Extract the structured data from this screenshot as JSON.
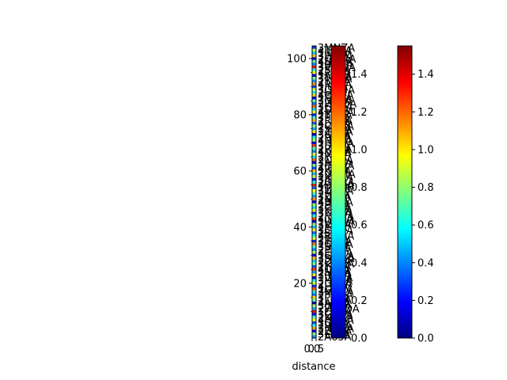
{
  "chart_data": {
    "type": "heatmap",
    "title": "",
    "xlabel": "distance",
    "ylabel": "",
    "x_ticks": [
      "0.0",
      "0.5"
    ],
    "y_ticks": [
      20,
      40,
      60,
      80,
      100
    ],
    "ylim": [
      0.5,
      104.5
    ],
    "grid": false,
    "colormap": "jet",
    "colormap_stops": [
      "#00007f",
      "#0000ff",
      "#007fff",
      "#00ffff",
      "#7fff7f",
      "#ffff00",
      "#ff7f00",
      "#ff0000",
      "#7f0000"
    ],
    "row_labels": [
      "2A65A",
      "3E1FA",
      "2ZV8A",
      "3NGZA",
      "1P6GA",
      "3QKJA",
      "4HBDA",
      "2XGZA",
      "3GX8A",
      "1C7ZA",
      "2WWDA",
      "3DNFA",
      "4ARTA",
      "1LBOA",
      "3PJMA",
      "2FQHA",
      "3MEZA",
      "1QR7A",
      "4J3AA",
      "2UZKA",
      "3HA9A",
      "1VKDA",
      "3RBTA",
      "2NXPA",
      "4C2FA",
      "1Y0XA",
      "3KWEA",
      "2D8PA",
      "3SW1A",
      "1GHAA",
      "4EOZA",
      "2PKTA",
      "3BLUA",
      "1OZRA",
      "3T7GA",
      "2IH3A",
      "4FMQA",
      "1SJYA",
      "3CXDA",
      "2J9EA",
      "3VLNA",
      "1WB4A",
      "4GUKA",
      "2MRSA",
      "3FQ6A",
      "1KH0A",
      "3OYCA",
      "2E5VA",
      "4BNXA",
      "1N1JA",
      "3ZPAA",
      "2HCIA",
      "3W4YA",
      "1T8KA",
      "4DQZA",
      "2OGBA",
      "3JLFA",
      "1XQSA",
      "3UNMA",
      "2K7RA",
      "4I6HA",
      "1EZWA",
      "3AB2A",
      "2QDLA",
      "3YJ5A",
      "1MFTA",
      "4KPCA",
      "2RX9A",
      "3L3EA",
      "1HUNA",
      "4NS8A",
      "2BT1A",
      "3IWVA",
      "1ZKGA",
      "3XE0A",
      "2CM6A",
      "4LQYA",
      "1R2UA",
      "3PF4A",
      "2TVOA",
      "4MA7A",
      "1DIXA",
      "3GTHA",
      "2WRQA",
      "3NE3A",
      "1FOBA",
      "4OHKA",
      "2LUJA",
      "3QSMA",
      "1JC5A",
      "4RYGA",
      "2YKEA",
      "3TD1A",
      "1AX9A",
      "4PZLA",
      "2SE2A",
      "3VHWA",
      "1BQ0A",
      "4UACA",
      "2GW4A",
      "3WFPA",
      "1ICRA",
      "4TKNA",
      "3MNZA"
    ],
    "values": [
      [
        0.42
      ],
      [
        0.77
      ],
      [
        0.15
      ],
      [
        1.12
      ],
      [
        0.58
      ],
      [
        0.31
      ],
      [
        0.94
      ],
      [
        0.66
      ],
      [
        0.22
      ],
      [
        1.35
      ],
      [
        0.47
      ],
      [
        0.83
      ],
      [
        0.09
      ],
      [
        0.71
      ],
      [
        1.03
      ],
      [
        0.38
      ],
      [
        0.55
      ],
      [
        1.21
      ],
      [
        0.27
      ],
      [
        0.89
      ],
      [
        0.62
      ],
      [
        0.14
      ],
      [
        0.99
      ],
      [
        0.45
      ],
      [
        1.28
      ],
      [
        0.33
      ],
      [
        0.74
      ],
      [
        0.51
      ],
      [
        1.08
      ],
      [
        0.19
      ],
      [
        0.86
      ],
      [
        0.41
      ],
      [
        0.67
      ],
      [
        1.17
      ],
      [
        0.25
      ],
      [
        0.92
      ],
      [
        0.57
      ],
      [
        0.36
      ],
      [
        1.01
      ],
      [
        0.48
      ],
      [
        0.79
      ],
      [
        0.12
      ],
      [
        1.24
      ],
      [
        0.63
      ],
      [
        0.29
      ],
      [
        0.95
      ],
      [
        0.53
      ],
      [
        0.81
      ],
      [
        0.18
      ],
      [
        1.14
      ],
      [
        0.44
      ],
      [
        0.7
      ],
      [
        0.97
      ],
      [
        0.35
      ],
      [
        1.31
      ],
      [
        0.6
      ],
      [
        0.23
      ],
      [
        0.87
      ],
      [
        0.49
      ],
      [
        1.06
      ],
      [
        0.32
      ],
      [
        0.75
      ],
      [
        0.16
      ],
      [
        1.19
      ],
      [
        0.54
      ],
      [
        0.9
      ],
      [
        0.4
      ],
      [
        0.68
      ],
      [
        1.27
      ],
      [
        0.21
      ],
      [
        0.84
      ],
      [
        0.59
      ],
      [
        0.11
      ],
      [
        1.0
      ],
      [
        0.46
      ],
      [
        0.78
      ],
      [
        0.34
      ],
      [
        1.1
      ],
      [
        0.65
      ],
      [
        0.26
      ],
      [
        0.93
      ],
      [
        0.52
      ],
      [
        1.22
      ],
      [
        0.37
      ],
      [
        0.72
      ],
      [
        0.17
      ],
      [
        1.04
      ],
      [
        0.56
      ],
      [
        0.88
      ],
      [
        0.3
      ],
      [
        1.15
      ],
      [
        0.43
      ],
      [
        0.76
      ],
      [
        0.2
      ],
      [
        0.98
      ],
      [
        0.61
      ],
      [
        1.33
      ],
      [
        0.39
      ],
      [
        0.69
      ],
      [
        0.13
      ],
      [
        1.07
      ],
      [
        0.5
      ],
      [
        0.85
      ],
      [
        0.28
      ]
    ],
    "colorbars": [
      {
        "ticks": [
          "0.0",
          "0.2",
          "0.4",
          "0.6",
          "0.8",
          "1.0",
          "1.2",
          "1.4"
        ],
        "range": [
          0,
          1.55
        ]
      },
      {
        "ticks": [
          "0.0",
          "0.2",
          "0.4",
          "0.6",
          "0.8",
          "1.0",
          "1.2",
          "1.4"
        ],
        "range": [
          0,
          1.55
        ]
      }
    ]
  }
}
